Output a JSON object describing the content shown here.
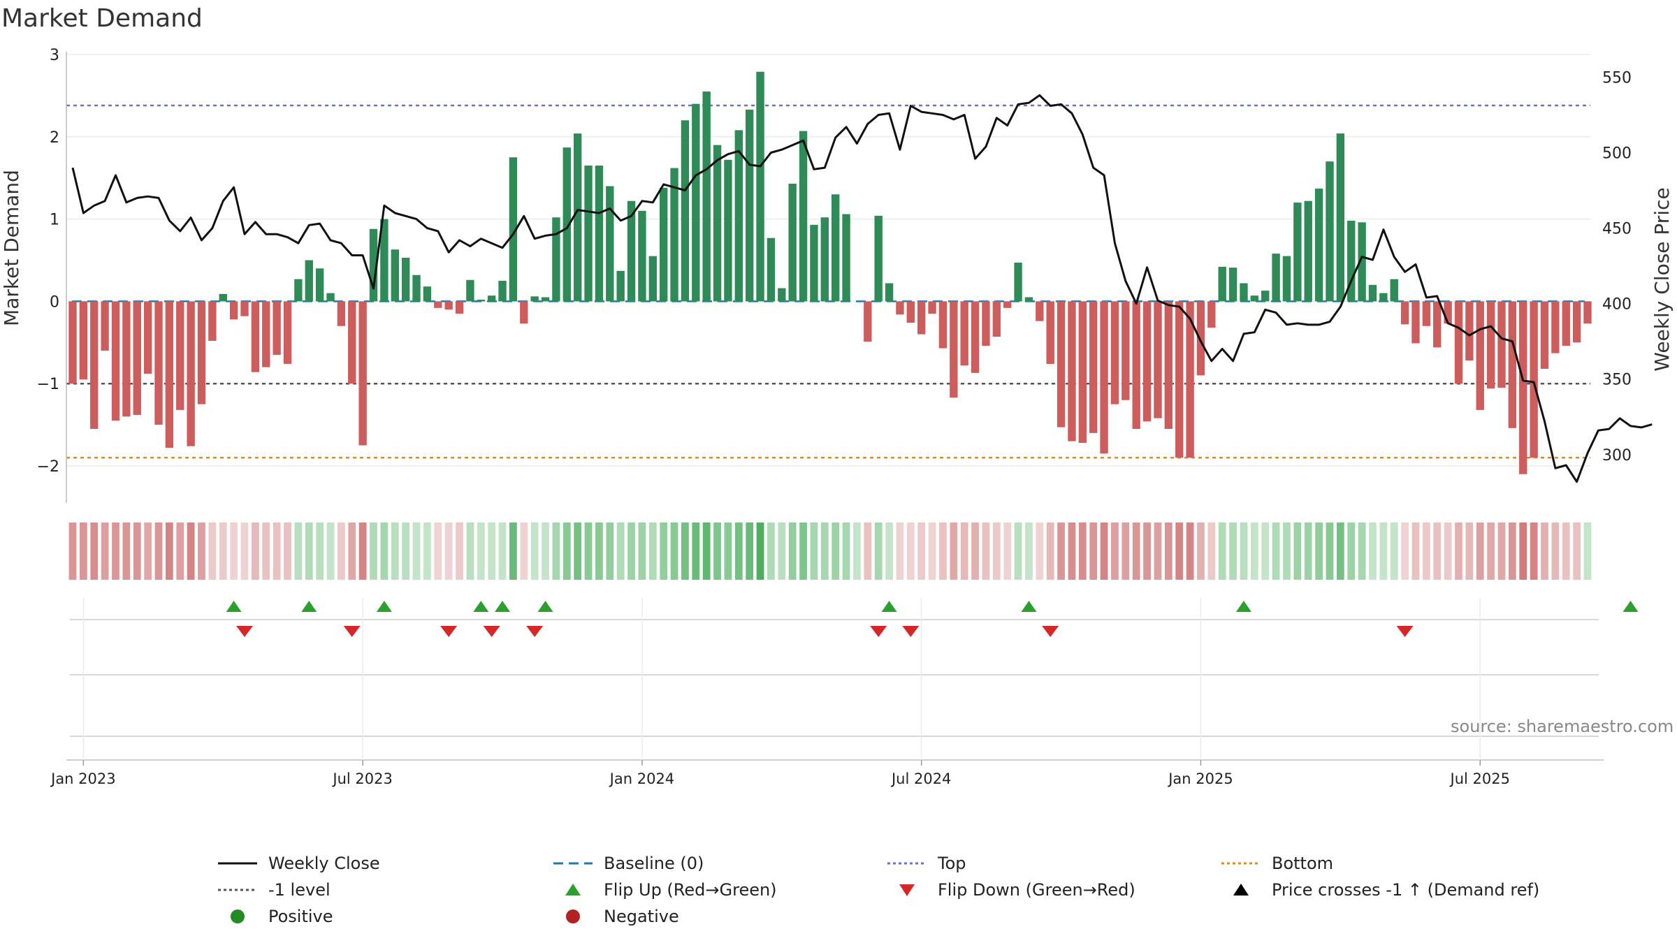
{
  "title": "Market Demand",
  "source": "source: sharemaestro.com",
  "colors": {
    "pos_bar": "#2e8b57",
    "neg_bar": "#cd5c5c",
    "close_line": "#111111",
    "baseline": "#1f77b4",
    "top": "#6a6fd6",
    "minus1": "#555555",
    "bottom": "#e08a1e",
    "flip_up": "#2ca02c",
    "flip_down": "#d62728",
    "positive": "#228b22",
    "negative": "#b22222"
  },
  "chart_data": {
    "type": "bar",
    "title": "Market Demand",
    "ylabel": "Market Demand",
    "y2label": "Weekly Close Price",
    "ylim": [
      -2.45,
      3.0
    ],
    "y2lim": [
      268,
      565
    ],
    "yticks": [
      "3",
      "2",
      "1",
      "0",
      "−1",
      "−2"
    ],
    "ytick_values": [
      3,
      2,
      1,
      0,
      -1,
      -2
    ],
    "y2ticks": [
      "550",
      "500",
      "450",
      "400",
      "350",
      "300"
    ],
    "y2tick_values": [
      550,
      500,
      450,
      400,
      350,
      300
    ],
    "x_labels": [
      "Jan 2023",
      "Jul 2023",
      "Jan 2024",
      "Jul 2024",
      "Jan 2025",
      "Jul 2025"
    ],
    "x_label_weeks": [
      1,
      27,
      53,
      79,
      105,
      131
    ],
    "levels": {
      "top": 2.38,
      "baseline": 0,
      "minus1": -1,
      "bottom": -1.9
    },
    "demand": [
      -1.0,
      -0.95,
      -1.55,
      -0.6,
      -1.45,
      -1.4,
      -1.38,
      -0.88,
      -1.5,
      -1.78,
      -1.32,
      -1.76,
      -1.25,
      -0.48,
      0.09,
      -0.22,
      -0.18,
      -0.86,
      -0.8,
      -0.65,
      -0.76,
      0.27,
      0.5,
      0.4,
      0.1,
      -0.3,
      -1.0,
      -1.75,
      0.88,
      1.0,
      0.63,
      0.53,
      0.32,
      0.18,
      -0.08,
      -0.1,
      -0.15,
      0.26,
      0.02,
      0.07,
      0.25,
      1.75,
      -0.27,
      0.06,
      0.05,
      1.02,
      1.87,
      2.04,
      1.65,
      1.65,
      1.4,
      0.37,
      1.22,
      1.1,
      0.55,
      1.38,
      1.62,
      2.2,
      2.4,
      2.55,
      1.9,
      1.72,
      2.08,
      2.33,
      2.79,
      0.77,
      0.16,
      1.43,
      2.07,
      0.93,
      1.02,
      1.3,
      1.06,
      0.0,
      -0.49,
      1.04,
      0.22,
      -0.16,
      -0.26,
      -0.4,
      -0.15,
      -0.57,
      -1.17,
      -0.78,
      -0.87,
      -0.54,
      -0.43,
      -0.08,
      0.47,
      0.05,
      -0.24,
      -0.76,
      -1.53,
      -1.7,
      -1.72,
      -1.6,
      -1.85,
      -1.25,
      -1.2,
      -1.55,
      -1.46,
      -1.42,
      -1.55,
      -1.9,
      -1.9,
      -0.9,
      -0.32,
      0.42,
      0.41,
      0.22,
      0.07,
      0.13,
      0.58,
      0.55,
      1.2,
      1.22,
      1.37,
      1.7,
      2.04,
      0.98,
      0.96,
      0.2,
      0.1,
      0.27,
      -0.28,
      -0.51,
      -0.3,
      -0.56,
      -0.27,
      -1.0,
      -0.72,
      -1.32,
      -1.06,
      -1.05,
      -1.54,
      -2.1,
      -1.9,
      -0.82,
      -0.63,
      -0.54,
      -0.5,
      -0.27
    ],
    "close": [
      490,
      460,
      465,
      468,
      485,
      467,
      470,
      471,
      470,
      455,
      448,
      457,
      442,
      450,
      468,
      477,
      446,
      454,
      446,
      446,
      444,
      440,
      452,
      453,
      442,
      440,
      432,
      432,
      410,
      465,
      460,
      458,
      456,
      450,
      448,
      434,
      442,
      438,
      443,
      440,
      437,
      446,
      458,
      443,
      445,
      446,
      450,
      462,
      461,
      460,
      463,
      455,
      458,
      468,
      467,
      479,
      477,
      475,
      485,
      489,
      495,
      499,
      501,
      492,
      491,
      500,
      502,
      505,
      508,
      489,
      490,
      510,
      517,
      506,
      519,
      525,
      526,
      502,
      531,
      527,
      526,
      525,
      522,
      525,
      496,
      504,
      523,
      518,
      532,
      533,
      538,
      531,
      532,
      526,
      512,
      490,
      485,
      440,
      415,
      400,
      424,
      402,
      399,
      398,
      390,
      375,
      362,
      370,
      362,
      380,
      381,
      396,
      394,
      386,
      387,
      386,
      386,
      388,
      398,
      415,
      431,
      429,
      449,
      431,
      421,
      426,
      404,
      405,
      387,
      384,
      379,
      383,
      385,
      377,
      375,
      349,
      348,
      322,
      291,
      293,
      282,
      301,
      316,
      317,
      324,
      319,
      318,
      320
    ],
    "heat": [
      -0.6,
      -0.6,
      -0.65,
      -0.55,
      -0.6,
      -0.6,
      -0.6,
      -0.5,
      -0.6,
      -0.7,
      -0.55,
      -0.7,
      -0.55,
      -0.3,
      -0.3,
      -0.25,
      -0.25,
      -0.4,
      -0.35,
      -0.35,
      -0.35,
      0.35,
      0.4,
      0.35,
      0.3,
      -0.3,
      -0.5,
      -0.7,
      0.4,
      0.45,
      0.35,
      0.35,
      0.3,
      0.3,
      -0.25,
      -0.25,
      -0.3,
      0.35,
      0.3,
      0.3,
      0.3,
      0.75,
      -0.25,
      0.3,
      0.3,
      0.45,
      0.6,
      0.7,
      0.6,
      0.6,
      0.55,
      0.4,
      0.5,
      0.5,
      0.4,
      0.55,
      0.6,
      0.7,
      0.75,
      0.8,
      0.65,
      0.6,
      0.7,
      0.75,
      0.9,
      0.4,
      0.35,
      0.55,
      0.65,
      0.45,
      0.45,
      0.5,
      0.45,
      0.3,
      -0.35,
      0.45,
      0.3,
      -0.25,
      -0.25,
      -0.3,
      -0.25,
      -0.35,
      -0.5,
      -0.4,
      -0.45,
      -0.35,
      -0.3,
      -0.25,
      0.35,
      0.3,
      -0.25,
      -0.4,
      -0.6,
      -0.65,
      -0.65,
      -0.6,
      -0.7,
      -0.55,
      -0.55,
      -0.6,
      -0.6,
      -0.55,
      -0.6,
      -0.7,
      -0.7,
      -0.45,
      -0.3,
      0.4,
      0.4,
      0.35,
      0.3,
      0.3,
      0.4,
      0.4,
      0.5,
      0.5,
      0.55,
      0.6,
      0.7,
      0.5,
      0.45,
      0.3,
      0.3,
      0.3,
      -0.25,
      -0.35,
      -0.3,
      -0.35,
      -0.3,
      -0.45,
      -0.4,
      -0.55,
      -0.5,
      -0.5,
      -0.6,
      -0.75,
      -0.7,
      -0.45,
      -0.4,
      -0.35,
      -0.35,
      0.3
    ],
    "flip_up_weeks": [
      15,
      22,
      29,
      38,
      40,
      44,
      76,
      89,
      109,
      145
    ],
    "flip_down_weeks": [
      16,
      26,
      35,
      39,
      43,
      75,
      78,
      91,
      124
    ],
    "markers_legend": [
      "Positive",
      "Negative"
    ]
  },
  "legend": [
    {
      "id": "weekly-close",
      "label": "Weekly Close"
    },
    {
      "id": "baseline",
      "label": "Baseline (0)"
    },
    {
      "id": "top",
      "label": "Top"
    },
    {
      "id": "bottom",
      "label": "Bottom"
    },
    {
      "id": "minus1",
      "label": "-1 level"
    },
    {
      "id": "flip-up",
      "label": "Flip Up (Red→Green)"
    },
    {
      "id": "flip-down",
      "label": "Flip Down (Green→Red)"
    },
    {
      "id": "price-cross",
      "label": "Price crosses -1 ↑ (Demand ref)"
    },
    {
      "id": "positive",
      "label": "Positive"
    },
    {
      "id": "negative",
      "label": "Negative"
    }
  ]
}
